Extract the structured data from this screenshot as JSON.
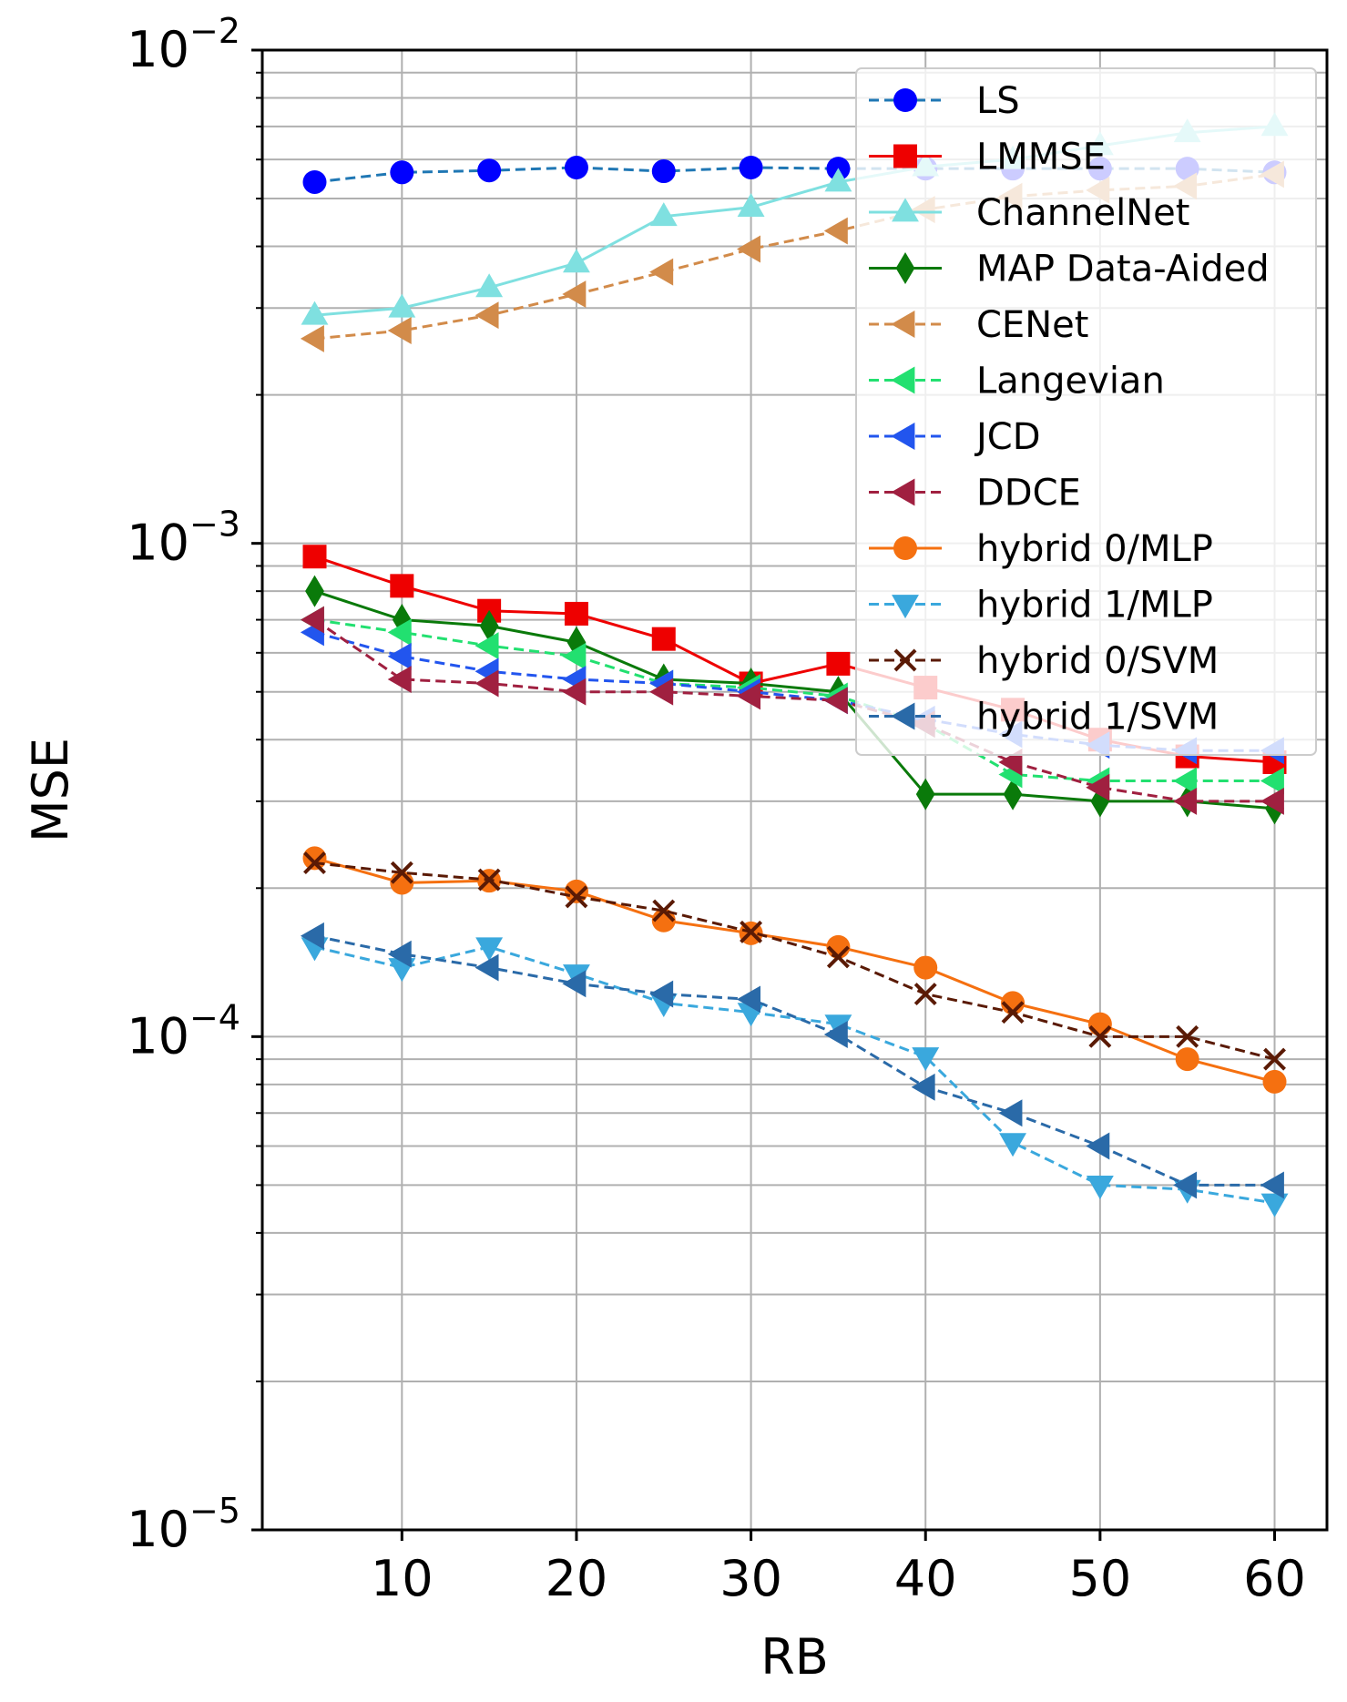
{
  "chart_data": {
    "type": "line",
    "xlabel": "RB",
    "ylabel": "MSE",
    "xlim": [
      2,
      63
    ],
    "ylim": [
      1e-05,
      0.01
    ],
    "yscale": "log",
    "grid": true,
    "legend_position": "top-right",
    "xticks": [
      10,
      20,
      30,
      40,
      50,
      60
    ],
    "yticks": [
      {
        "value": 1e-05,
        "base": "10",
        "exp": "−5"
      },
      {
        "value": 0.0001,
        "base": "10",
        "exp": "−4"
      },
      {
        "value": 0.001,
        "base": "10",
        "exp": "−3"
      },
      {
        "value": 0.01,
        "base": "10",
        "exp": "−2"
      }
    ],
    "x": [
      5,
      10,
      15,
      20,
      25,
      30,
      35,
      40,
      45,
      50,
      55,
      60
    ],
    "series": [
      {
        "name": "LS",
        "color": "#1f77b4",
        "marker_color": "#0000ff",
        "marker": "circle",
        "dash": true,
        "values": [
          0.0054,
          0.00565,
          0.0057,
          0.00578,
          0.00568,
          0.00578,
          0.00575,
          0.00575,
          0.00575,
          0.00575,
          0.00575,
          0.00565
        ]
      },
      {
        "name": "LMMSE",
        "color": "#ee0000",
        "marker_color": "#ee0000",
        "marker": "square",
        "dash": false,
        "values": [
          0.00094,
          0.00082,
          0.00073,
          0.00072,
          0.00064,
          0.00052,
          0.00057,
          0.00051,
          0.00046,
          0.0004,
          0.00037,
          0.00036
        ]
      },
      {
        "name": "ChannelNet",
        "color": "#7fe0e0",
        "marker_color": "#7fe0e0",
        "marker": "triangle-up",
        "dash": false,
        "values": [
          0.0029,
          0.003,
          0.0033,
          0.0037,
          0.0046,
          0.0048,
          0.0054,
          0.0058,
          0.006,
          0.0064,
          0.0068,
          0.007
        ]
      },
      {
        "name": "MAP Data-Aided",
        "color": "#0a7a0a",
        "marker_color": "#0a7a0a",
        "marker": "diamond",
        "dash": false,
        "values": [
          0.0008,
          0.0007,
          0.00068,
          0.00063,
          0.00053,
          0.00052,
          0.0005,
          0.00031,
          0.00031,
          0.0003,
          0.0003,
          0.00029
        ]
      },
      {
        "name": "CENet",
        "color": "#d28b4a",
        "marker_color": "#d28b4a",
        "marker": "triangle-left",
        "dash": true,
        "values": [
          0.0026,
          0.0027,
          0.0029,
          0.0032,
          0.00355,
          0.00395,
          0.0043,
          0.00475,
          0.00505,
          0.0052,
          0.0053,
          0.0056
        ]
      },
      {
        "name": "Langevian",
        "color": "#22e070",
        "marker_color": "#22e070",
        "marker": "triangle-left",
        "dash": true,
        "values": [
          0.0007,
          0.00066,
          0.00062,
          0.00059,
          0.00052,
          0.00051,
          0.00049,
          0.00043,
          0.00034,
          0.00033,
          0.00033,
          0.00033
        ]
      },
      {
        "name": "JCD",
        "color": "#2255ee",
        "marker_color": "#2255ee",
        "marker": "triangle-left",
        "dash": true,
        "values": [
          0.00066,
          0.00059,
          0.00055,
          0.00053,
          0.00052,
          0.0005,
          0.00048,
          0.00044,
          0.00041,
          0.00039,
          0.00038,
          0.00038
        ]
      },
      {
        "name": "DDCE",
        "color": "#a02040",
        "marker_color": "#a02040",
        "marker": "triangle-left",
        "dash": true,
        "values": [
          0.0007,
          0.00053,
          0.00052,
          0.0005,
          0.0005,
          0.00049,
          0.00048,
          0.00043,
          0.00036,
          0.00032,
          0.0003,
          0.0003
        ]
      },
      {
        "name": "hybrid 0/MLP",
        "color": "#f57010",
        "marker_color": "#f57010",
        "marker": "circle",
        "dash": false,
        "values": [
          0.00023,
          0.000205,
          0.000207,
          0.000197,
          0.000172,
          0.000162,
          0.000152,
          0.000138,
          0.000117,
          0.000106,
          9e-05,
          8.1e-05
        ]
      },
      {
        "name": "hybrid 1/MLP",
        "color": "#3aa8dd",
        "marker_color": "#3aa8dd",
        "marker": "triangle-down",
        "dash": true,
        "values": [
          0.000152,
          0.000138,
          0.000152,
          0.000134,
          0.000117,
          0.000112,
          0.000106,
          9.1e-05,
          6.1e-05,
          5e-05,
          4.9e-05,
          4.6e-05
        ]
      },
      {
        "name": "hybrid 0/SVM",
        "color": "#5a1a05",
        "marker_color": "#5a1a05",
        "marker": "x",
        "dash": true,
        "values": [
          0.000225,
          0.000215,
          0.000208,
          0.000192,
          0.00018,
          0.000163,
          0.000145,
          0.000122,
          0.000112,
          0.0001,
          0.0001,
          9e-05
        ]
      },
      {
        "name": "hybrid 1/SVM",
        "color": "#2a6aa8",
        "marker_color": "#2a6aa8",
        "marker": "triangle-left",
        "dash": true,
        "values": [
          0.00016,
          0.000147,
          0.000138,
          0.000128,
          0.000122,
          0.000119,
          0.000101,
          7.9e-05,
          7e-05,
          6e-05,
          5e-05,
          5e-05
        ]
      }
    ]
  }
}
